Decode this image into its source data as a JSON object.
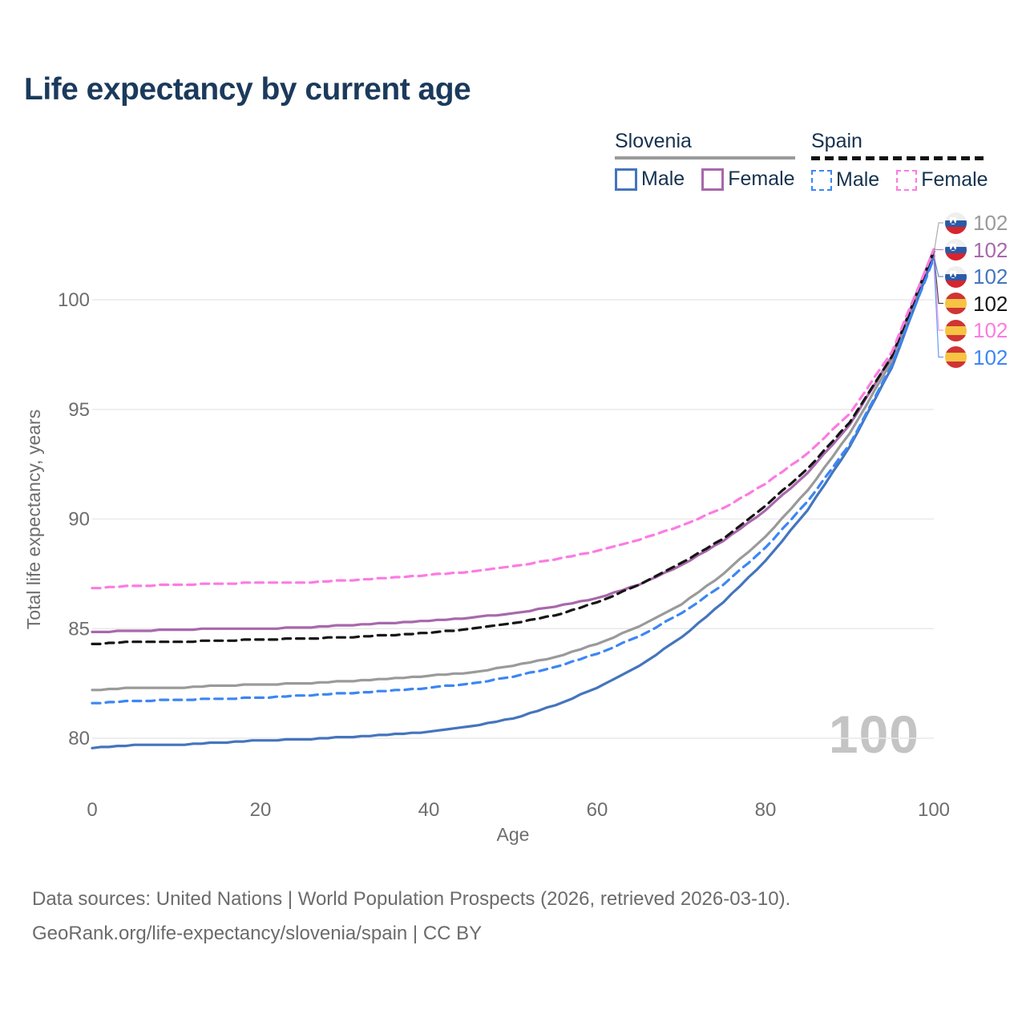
{
  "title": "Life expectancy by current age",
  "legend": {
    "slovenia": {
      "label": "Slovenia",
      "male_label": "Male",
      "female_label": "Female"
    },
    "spain": {
      "label": "Spain",
      "male_label": "Male",
      "female_label": "Female"
    }
  },
  "watermark": "100",
  "footer": {
    "line1": "Data sources: United Nations | World Population Prospects (2026, retrieved 2026-03-10).",
    "line2": "GeoRank.org/life-expectancy/slovenia/spain | CC BY"
  },
  "colors": {
    "title": "#1b3a5c",
    "grid": "#e9e9e9",
    "tick_text": "#6e6e6e",
    "watermark": "#c4c4c4",
    "footer_text": "#6b6b6b",
    "slovenia_total": "#9a9a9a",
    "slovenia_male": "#4475bd",
    "slovenia_female": "#a868ab",
    "spain_total": "#161616",
    "spain_male": "#3c86f4",
    "spain_female": "#fc7be2"
  },
  "chart_data": {
    "type": "line",
    "title": "Life expectancy by current age",
    "xlabel": "Age",
    "ylabel": "Total life expectancy, years",
    "x": [
      0,
      5,
      10,
      15,
      20,
      25,
      30,
      35,
      40,
      45,
      50,
      55,
      60,
      65,
      70,
      75,
      80,
      85,
      90,
      95,
      100
    ],
    "xticks": [
      0,
      20,
      40,
      60,
      80,
      100
    ],
    "yticks": [
      80,
      85,
      90,
      95,
      100
    ],
    "xlim": [
      0,
      100
    ],
    "ylim": [
      78.5,
      103
    ],
    "grid": "horizontal-only",
    "legend_position": "top-right",
    "series": [
      {
        "name": "Slovenia",
        "group": "Slovenia",
        "style": "solid",
        "color": "#9a9a9a",
        "values": [
          82.2,
          82.3,
          82.3,
          82.4,
          82.45,
          82.5,
          82.6,
          82.7,
          82.85,
          83.0,
          83.3,
          83.7,
          84.3,
          85.1,
          86.1,
          87.5,
          89.2,
          91.3,
          93.9,
          97.2,
          102.1
        ]
      },
      {
        "name": "Slovenia Male",
        "group": "Slovenia",
        "style": "solid",
        "color": "#4475bd",
        "values": [
          79.55,
          79.7,
          79.7,
          79.8,
          79.9,
          79.95,
          80.05,
          80.15,
          80.3,
          80.55,
          80.9,
          81.5,
          82.3,
          83.3,
          84.6,
          86.2,
          88.1,
          90.4,
          93.3,
          96.9,
          102.0
        ]
      },
      {
        "name": "Slovenia Female",
        "group": "Slovenia",
        "style": "solid",
        "color": "#a868ab",
        "values": [
          84.85,
          84.9,
          84.95,
          85.0,
          85.0,
          85.05,
          85.15,
          85.25,
          85.35,
          85.5,
          85.7,
          86.0,
          86.4,
          87.0,
          87.9,
          89.0,
          90.4,
          92.1,
          94.3,
          97.4,
          102.3
        ]
      },
      {
        "name": "Spain",
        "group": "Spain",
        "style": "dashed",
        "color": "#161616",
        "values": [
          84.3,
          84.4,
          84.4,
          84.45,
          84.5,
          84.55,
          84.6,
          84.7,
          84.8,
          85.0,
          85.25,
          85.6,
          86.2,
          87.0,
          88.0,
          89.1,
          90.6,
          92.3,
          94.4,
          97.4,
          102.2
        ]
      },
      {
        "name": "Spain Male",
        "group": "Spain",
        "style": "dashed",
        "color": "#3c86f4",
        "values": [
          81.6,
          81.7,
          81.75,
          81.8,
          81.85,
          81.95,
          82.05,
          82.15,
          82.3,
          82.5,
          82.8,
          83.25,
          83.85,
          84.65,
          85.7,
          87.0,
          88.7,
          90.8,
          93.4,
          97.0,
          101.9
        ]
      },
      {
        "name": "Spain Female",
        "group": "Spain",
        "style": "dashed",
        "color": "#fc7be2",
        "values": [
          86.85,
          86.95,
          87.0,
          87.05,
          87.1,
          87.1,
          87.2,
          87.3,
          87.45,
          87.6,
          87.85,
          88.15,
          88.55,
          89.05,
          89.7,
          90.5,
          91.6,
          93.0,
          94.8,
          97.6,
          102.3
        ]
      }
    ],
    "end_labels": [
      {
        "series_index": 0,
        "flag": "slovenia",
        "value": "102",
        "color": "#9a9a9a"
      },
      {
        "series_index": 2,
        "flag": "slovenia",
        "value": "102",
        "color": "#a868ab"
      },
      {
        "series_index": 1,
        "flag": "slovenia",
        "value": "102",
        "color": "#4475bd"
      },
      {
        "series_index": 3,
        "flag": "spain",
        "value": "102",
        "color": "#161616"
      },
      {
        "series_index": 5,
        "flag": "spain",
        "value": "102",
        "color": "#fc7be2"
      },
      {
        "series_index": 4,
        "flag": "spain",
        "value": "102",
        "color": "#3c86f4"
      }
    ]
  }
}
